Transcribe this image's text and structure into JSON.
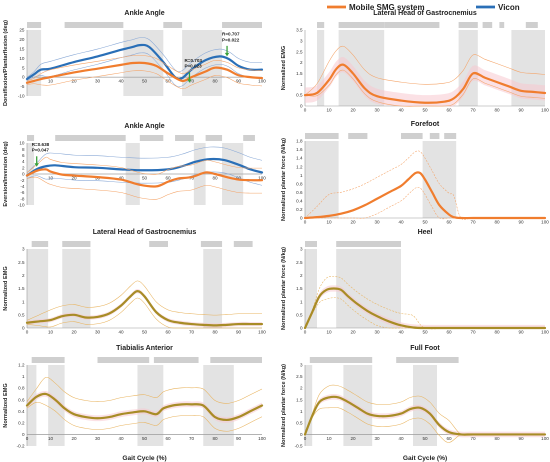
{
  "legend": {
    "items": [
      {
        "label": "Mobile SMG system",
        "color": "#f07d2e"
      },
      {
        "label": "Vicon",
        "color": "#2a6fb7"
      }
    ]
  },
  "chart_data": [
    {
      "type": "line",
      "title": "Ankle Angle",
      "ylabel": "Dorsiflexion/Plantarflexion (deg)",
      "xlabel": "",
      "xlim": [
        0,
        100
      ],
      "ylim": [
        -10,
        25
      ],
      "yticks": [
        -10,
        -5,
        0,
        5,
        10,
        15,
        20,
        25
      ],
      "xticks": [
        10,
        20,
        30,
        40,
        50,
        60,
        70,
        80,
        90,
        100
      ],
      "phase_bars": [
        [
          0,
          6
        ],
        [
          16,
          41
        ],
        [
          58,
          66
        ],
        [
          83,
          100
        ]
      ],
      "shaded_regions": [
        [
          0,
          6
        ],
        [
          41,
          58
        ],
        [
          66,
          83
        ]
      ],
      "series": [
        {
          "name": "Vicon",
          "color": "#2a6fb7",
          "x": [
            0,
            3,
            6,
            10,
            20,
            30,
            40,
            45,
            48,
            52,
            58,
            63,
            66,
            70,
            76,
            82,
            86,
            90,
            95,
            100
          ],
          "y": [
            -1,
            1.5,
            4,
            4.5,
            8,
            11,
            14.5,
            16,
            17,
            16,
            8,
            0,
            -0.5,
            4,
            9,
            11,
            9.5,
            6,
            4,
            4
          ]
        },
        {
          "name": "Mobile SMG system",
          "color": "#f07d2e",
          "x": [
            0,
            3,
            6,
            10,
            20,
            30,
            40,
            45,
            50,
            55,
            60,
            66,
            70,
            76,
            80,
            85,
            90,
            95,
            100
          ],
          "y": [
            -3,
            -2,
            -1,
            0,
            2.5,
            4.5,
            6.5,
            7.5,
            7.5,
            6,
            2,
            -2,
            0,
            3,
            5,
            4,
            1,
            0,
            -0.5
          ]
        }
      ],
      "annotations": [
        {
          "text": [
            "R=0.703",
            "P=0.023"
          ],
          "x": 67,
          "y": 8
        },
        {
          "text": [
            "R=0.707",
            "P=0.022"
          ],
          "x": 83,
          "y": 22
        }
      ]
    },
    {
      "type": "line",
      "title": "Lateral Head of Gastrocnemius",
      "ylabel": "Normalized EMG",
      "xlabel": "",
      "xlim": [
        0,
        100
      ],
      "ylim": [
        0,
        3.5
      ],
      "yticks": [
        0,
        0.5,
        1,
        1.5,
        2,
        2.5,
        3,
        3.5
      ],
      "xticks": [
        0,
        10,
        20,
        30,
        40,
        50,
        60,
        70,
        80,
        90,
        100
      ],
      "phase_bars": [
        [
          5,
          8
        ],
        [
          14,
          33
        ],
        [
          33,
          56
        ],
        [
          64,
          72
        ],
        [
          74,
          78
        ],
        [
          81,
          83
        ],
        [
          92,
          97
        ]
      ],
      "shaded_regions": [
        [
          5,
          8
        ],
        [
          14,
          33
        ],
        [
          64,
          72
        ],
        [
          86,
          100
        ]
      ],
      "series": [
        {
          "name": "Mobile SMG system",
          "color": "#f07d2e",
          "x": [
            0,
            5,
            10,
            13,
            16,
            20,
            25,
            30,
            40,
            50,
            58,
            62,
            66,
            70,
            75,
            80,
            85,
            90,
            95,
            100
          ],
          "y": [
            0.5,
            0.6,
            1.2,
            1.7,
            1.9,
            1.5,
            0.8,
            0.45,
            0.25,
            0.15,
            0.2,
            0.35,
            0.8,
            1.5,
            1.3,
            1.1,
            0.9,
            0.7,
            0.65,
            0.6
          ]
        }
      ]
    },
    {
      "type": "line",
      "title": "Ankle Angle",
      "ylabel": "Eversion/Inversion (deg)",
      "xlabel": "",
      "xlim": [
        0,
        100
      ],
      "ylim": [
        -10,
        10
      ],
      "yticks": [
        -10,
        -8,
        -6,
        -4,
        -2,
        0,
        2,
        4,
        6,
        8,
        10
      ],
      "xticks": [
        10,
        20,
        30,
        40,
        50,
        60,
        70,
        80,
        90,
        100
      ],
      "phase_bars": [
        [
          0,
          3
        ],
        [
          12,
          42
        ],
        [
          48,
          58
        ],
        [
          63,
          71
        ],
        [
          76,
          83
        ],
        [
          92,
          97
        ]
      ],
      "shaded_regions": [
        [
          0,
          3
        ],
        [
          42,
          48
        ],
        [
          71,
          76
        ],
        [
          83,
          92
        ]
      ],
      "series": [
        {
          "name": "Vicon",
          "color": "#2a6fb7",
          "x": [
            0,
            4,
            8,
            12,
            20,
            30,
            40,
            50,
            60,
            66,
            72,
            78,
            84,
            90,
            95,
            100
          ],
          "y": [
            -0.5,
            1.5,
            2.5,
            2.8,
            2.2,
            2,
            1.5,
            1.2,
            1.5,
            2.5,
            4,
            4.8,
            4.5,
            3,
            1.5,
            0.5
          ]
        },
        {
          "name": "Mobile SMG system",
          "color": "#f07d2e",
          "x": [
            0,
            4,
            8,
            10,
            15,
            20,
            30,
            40,
            48,
            55,
            60,
            64,
            70,
            76,
            80,
            85,
            90,
            95,
            100
          ],
          "y": [
            -0.5,
            1,
            1.5,
            0.8,
            -0.2,
            -0.5,
            -1,
            -1.8,
            -3.5,
            -4,
            -2.5,
            -1.5,
            -1,
            0.5,
            0,
            -1,
            -1.8,
            -2,
            -2
          ]
        }
      ],
      "annotations": [
        {
          "text": [
            "R=0.638",
            "P=0.047"
          ],
          "x": 2,
          "y": 9
        }
      ]
    },
    {
      "type": "line",
      "title": "Forefoot",
      "ylabel": "Normalized plantar force (N/kg)",
      "xlabel": "",
      "xlim": [
        0,
        100
      ],
      "ylim": [
        0,
        1.8
      ],
      "yticks": [
        0,
        0.2,
        0.4,
        0.6,
        0.8,
        1,
        1.2,
        1.4,
        1.6,
        1.8
      ],
      "xticks": [
        0,
        10,
        20,
        30,
        40,
        50,
        60,
        70,
        80,
        90,
        100
      ],
      "phase_bars": [
        [
          0,
          14
        ],
        [
          18,
          26
        ],
        [
          40,
          49
        ],
        [
          52,
          56
        ],
        [
          58,
          63
        ]
      ],
      "shaded_regions": [
        [
          0,
          14
        ],
        [
          49,
          63
        ]
      ],
      "series": [
        {
          "name": "Mobile SMG system",
          "color": "#f07d2e",
          "x": [
            0,
            5,
            10,
            15,
            20,
            25,
            30,
            35,
            40,
            43,
            46,
            48,
            50,
            53,
            56,
            60,
            62,
            65,
            70,
            80,
            90,
            100
          ],
          "y": [
            0,
            0.02,
            0.05,
            0.1,
            0.18,
            0.3,
            0.45,
            0.6,
            0.75,
            0.9,
            1.05,
            1.05,
            0.9,
            0.6,
            0.3,
            0.08,
            0.02,
            0,
            0,
            0,
            0,
            0
          ]
        }
      ]
    },
    {
      "type": "line",
      "title": "Lateral Head of Gastrocnemius",
      "ylabel": "Normalized EMG",
      "xlabel": "",
      "xlim": [
        0,
        100
      ],
      "ylim": [
        0,
        3
      ],
      "yticks": [
        0,
        0.5,
        1,
        1.5,
        2,
        2.5,
        3
      ],
      "xticks": [
        0,
        10,
        20,
        30,
        40,
        50,
        60,
        70,
        80,
        90,
        100
      ],
      "phase_bars": [
        [
          2,
          9
        ],
        [
          15,
          27
        ],
        [
          52,
          60
        ],
        [
          74,
          83
        ],
        [
          88,
          96
        ]
      ],
      "shaded_regions": [
        [
          0,
          9
        ],
        [
          15,
          27
        ],
        [
          75,
          83
        ]
      ],
      "series": [
        {
          "name": "Mobile SMG system",
          "color": "#a88c26",
          "x": [
            0,
            5,
            10,
            15,
            20,
            25,
            30,
            35,
            40,
            44,
            47,
            50,
            55,
            60,
            65,
            70,
            75,
            80,
            85,
            90,
            95,
            100
          ],
          "y": [
            0.2,
            0.25,
            0.3,
            0.45,
            0.5,
            0.4,
            0.42,
            0.55,
            0.85,
            1.2,
            1.4,
            1.2,
            0.6,
            0.3,
            0.2,
            0.15,
            0.12,
            0.1,
            0.12,
            0.15,
            0.15,
            0.15
          ]
        }
      ]
    },
    {
      "type": "line",
      "title": "Heel",
      "ylabel": "Normalized plantar force (N/kg)",
      "xlabel": "",
      "xlim": [
        0,
        100
      ],
      "ylim": [
        0,
        3
      ],
      "yticks": [
        0,
        0.5,
        1,
        1.5,
        2,
        2.5,
        3
      ],
      "xticks": [
        0,
        10,
        20,
        30,
        40,
        50,
        60,
        70,
        80,
        90,
        100
      ],
      "phase_bars": [
        [
          0,
          5
        ],
        [
          13,
          40
        ]
      ],
      "shaded_regions": [
        [
          0,
          5
        ],
        [
          13,
          40
        ]
      ],
      "series": [
        {
          "name": "Mobile SMG system",
          "color": "#a88c26",
          "x": [
            0,
            3,
            6,
            9,
            12,
            15,
            18,
            22,
            26,
            30,
            35,
            40,
            45,
            50,
            60,
            70,
            80,
            90,
            100
          ],
          "y": [
            0,
            0.6,
            1.2,
            1.45,
            1.5,
            1.45,
            1.2,
            0.9,
            0.65,
            0.45,
            0.25,
            0.1,
            0.02,
            0,
            0,
            0,
            0,
            0,
            0
          ]
        }
      ]
    },
    {
      "type": "line",
      "title": "Tiabialis Anterior",
      "ylabel": "Normalized EMG",
      "xlabel": "Gait Cycle (%)",
      "xlim": [
        0,
        100
      ],
      "ylim": [
        -0.2,
        1.2
      ],
      "yticks": [
        -0.2,
        0,
        0.2,
        0.4,
        0.6,
        0.8,
        1,
        1.2
      ],
      "xticks": [
        0,
        10,
        20,
        30,
        40,
        50,
        60,
        70,
        80,
        90,
        100
      ],
      "phase_bars": [
        [
          2,
          16
        ],
        [
          30,
          52
        ],
        [
          54,
          73
        ],
        [
          78,
          100
        ]
      ],
      "shaded_regions": [
        [
          0,
          4
        ],
        [
          9,
          16
        ],
        [
          47,
          58
        ],
        [
          75,
          88
        ]
      ],
      "series": [
        {
          "name": "Mobile SMG system",
          "color": "#a88c26",
          "x": [
            0,
            4,
            8,
            12,
            16,
            20,
            25,
            30,
            35,
            40,
            45,
            50,
            55,
            58,
            62,
            66,
            70,
            75,
            80,
            85,
            90,
            95,
            100
          ],
          "y": [
            0.5,
            0.65,
            0.7,
            0.6,
            0.45,
            0.35,
            0.3,
            0.28,
            0.3,
            0.35,
            0.38,
            0.4,
            0.35,
            0.45,
            0.5,
            0.52,
            0.52,
            0.5,
            0.3,
            0.25,
            0.3,
            0.4,
            0.5
          ]
        }
      ]
    },
    {
      "type": "line",
      "title": "Full Foot",
      "ylabel": "Normalized plantar force (N/kg)",
      "xlabel": "Gait Cycle (%)",
      "xlim": [
        0,
        100
      ],
      "ylim": [
        -0.5,
        3
      ],
      "yticks": [
        -0.5,
        0,
        0.5,
        1,
        1.5,
        2,
        2.5,
        3
      ],
      "xticks": [
        0,
        10,
        20,
        30,
        40,
        50,
        60,
        70,
        80,
        90,
        100
      ],
      "phase_bars": [
        [
          2,
          28
        ],
        [
          38,
          64
        ]
      ],
      "shaded_regions": [
        [
          0,
          3
        ],
        [
          16,
          28
        ],
        [
          45,
          55
        ]
      ],
      "series": [
        {
          "name": "Mobile SMG system",
          "color": "#a88c26",
          "x": [
            0,
            3,
            6,
            10,
            14,
            18,
            22,
            26,
            30,
            35,
            40,
            44,
            48,
            52,
            56,
            60,
            65,
            70,
            80,
            90,
            100
          ],
          "y": [
            0,
            0.8,
            1.4,
            1.6,
            1.6,
            1.4,
            1.15,
            0.9,
            0.8,
            0.8,
            0.9,
            1.1,
            1.15,
            0.9,
            0.4,
            0.1,
            0,
            0,
            0,
            0,
            0
          ]
        }
      ]
    }
  ]
}
